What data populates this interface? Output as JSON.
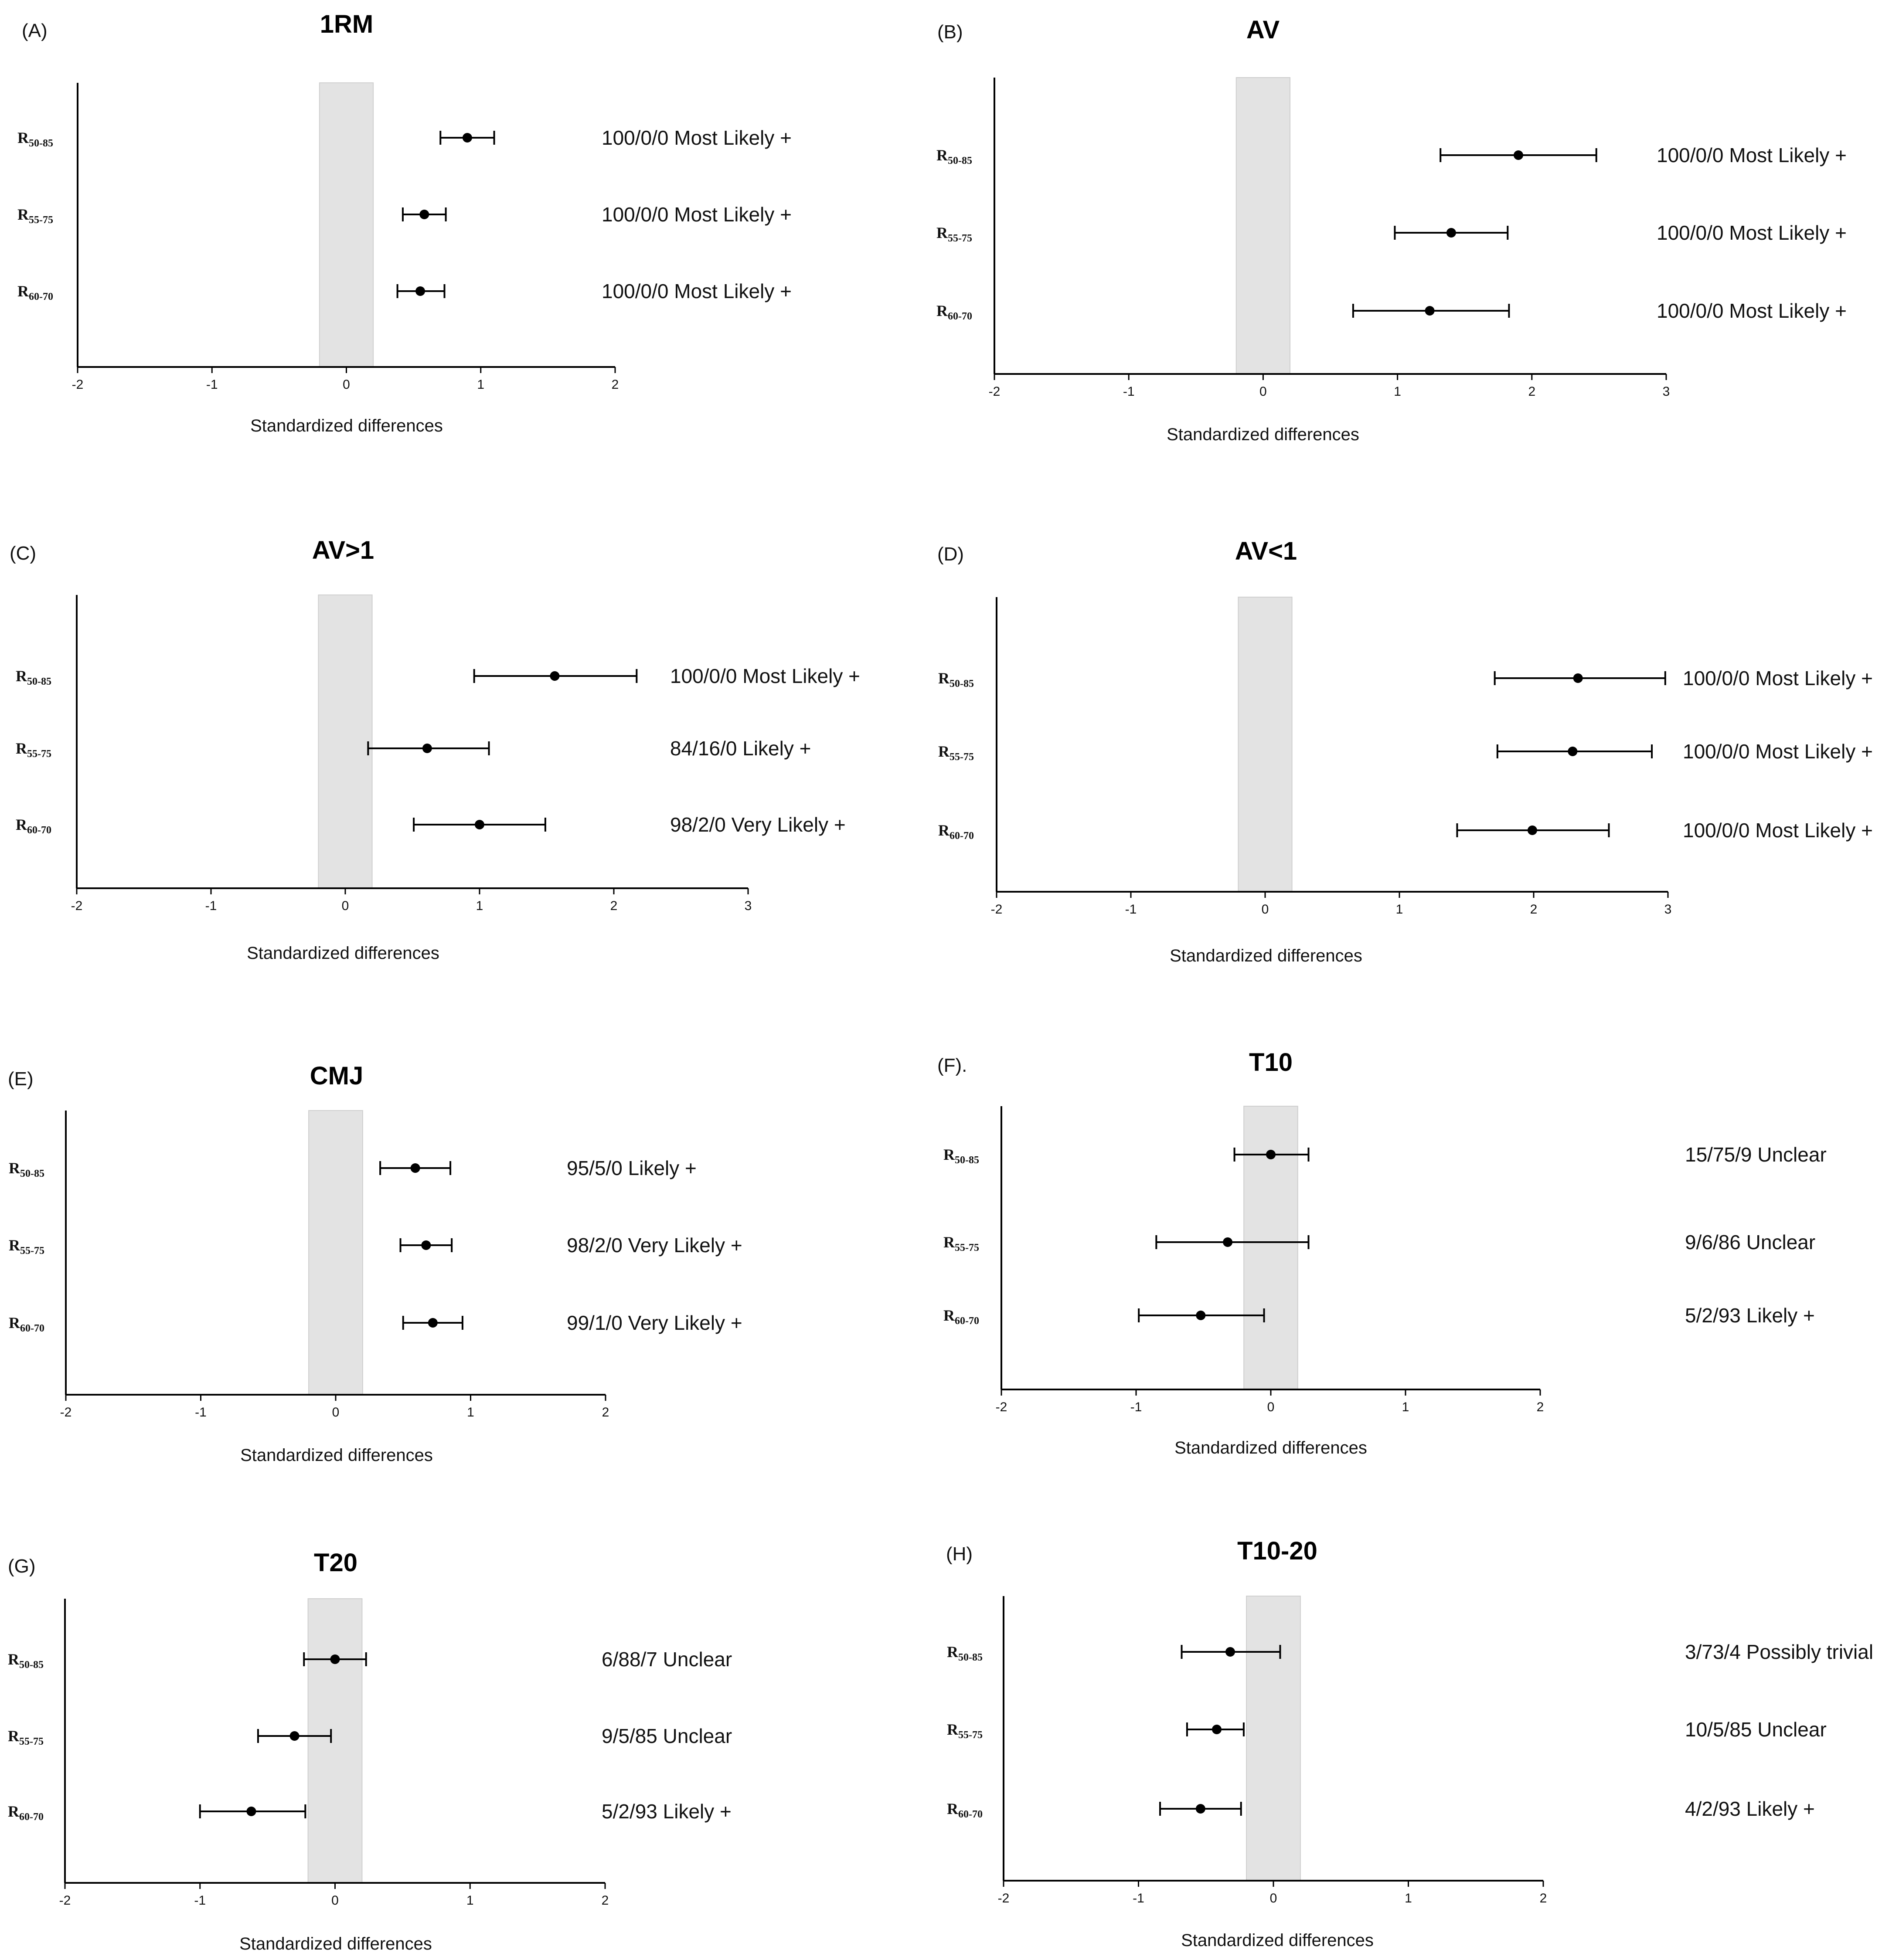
{
  "chart_data": [
    {
      "type": "forest",
      "panel": "(A)",
      "title": "1RM",
      "xlabel": "Standardized differences",
      "xlim": [
        -2,
        2
      ],
      "xticks": [
        "-2",
        "-1",
        "0",
        "1",
        "2"
      ],
      "trivial_band": [
        -0.2,
        0.2
      ],
      "rows": [
        {
          "label_main": "R",
          "label_sub": "50-85",
          "value": 0.9,
          "lower": 0.7,
          "upper": 1.1,
          "annotation": "100/0/0 Most Likely +"
        },
        {
          "label_main": "R",
          "label_sub": "55-75",
          "value": 0.58,
          "lower": 0.42,
          "upper": 0.74,
          "annotation": "100/0/0 Most Likely +"
        },
        {
          "label_main": "R",
          "label_sub": "60-70",
          "value": 0.55,
          "lower": 0.38,
          "upper": 0.73,
          "annotation": "100/0/0 Most Likely +"
        }
      ]
    },
    {
      "type": "forest",
      "panel": "(B)",
      "title": "AV",
      "xlabel": "Standardized differences",
      "xlim": [
        -2,
        3
      ],
      "xticks": [
        "-2",
        "-1",
        "0",
        "1",
        "2",
        "3"
      ],
      "trivial_band": [
        -0.2,
        0.2
      ],
      "rows": [
        {
          "label_main": "R",
          "label_sub": "50-85",
          "value": 1.9,
          "lower": 1.32,
          "upper": 2.48,
          "annotation": "100/0/0 Most Likely +"
        },
        {
          "label_main": "R",
          "label_sub": "55-75",
          "value": 1.4,
          "lower": 0.98,
          "upper": 1.82,
          "annotation": "100/0/0 Most Likely +"
        },
        {
          "label_main": "R",
          "label_sub": "60-70",
          "value": 1.24,
          "lower": 0.67,
          "upper": 1.83,
          "annotation": "100/0/0 Most Likely +"
        }
      ]
    },
    {
      "type": "forest",
      "panel": "(C)",
      "title": "AV>1",
      "xlabel": "Standardized differences",
      "xlim": [
        -2,
        3
      ],
      "xticks": [
        "-2",
        "-1",
        "0",
        "1",
        "2",
        "3"
      ],
      "trivial_band": [
        -0.2,
        0.2
      ],
      "rows": [
        {
          "label_main": "R",
          "label_sub": "50-85",
          "value": 1.56,
          "lower": 0.96,
          "upper": 2.17,
          "annotation": "100/0/0 Most Likely +"
        },
        {
          "label_main": "R",
          "label_sub": "55-75",
          "value": 0.61,
          "lower": 0.17,
          "upper": 1.07,
          "annotation": "84/16/0 Likely +"
        },
        {
          "label_main": "R",
          "label_sub": "60-70",
          "value": 1.0,
          "lower": 0.51,
          "upper": 1.49,
          "annotation": "98/2/0 Very Likely +"
        }
      ]
    },
    {
      "type": "forest",
      "panel": "(D)",
      "title": "AV<1",
      "xlabel": "Standardized differences",
      "xlim": [
        -2,
        3
      ],
      "xticks": [
        "-2",
        "-1",
        "0",
        "1",
        "2",
        "3"
      ],
      "trivial_band": [
        -0.2,
        0.2
      ],
      "rows": [
        {
          "label_main": "R",
          "label_sub": "50-85",
          "value": 2.33,
          "lower": 1.71,
          "upper": 2.98,
          "annotation": "100/0/0 Most Likely +"
        },
        {
          "label_main": "R",
          "label_sub": "55-75",
          "value": 2.29,
          "lower": 1.73,
          "upper": 2.88,
          "annotation": "100/0/0 Most Likely +"
        },
        {
          "label_main": "R",
          "label_sub": "60-70",
          "value": 1.99,
          "lower": 1.43,
          "upper": 2.56,
          "annotation": "100/0/0 Most Likely +"
        }
      ]
    },
    {
      "type": "forest",
      "panel": "(E)",
      "title": "CMJ",
      "xlabel": "Standardized differences",
      "xlim": [
        -2,
        2
      ],
      "xticks": [
        "-2",
        "-1",
        "0",
        "1",
        "2"
      ],
      "trivial_band": [
        -0.2,
        0.2
      ],
      "rows": [
        {
          "label_main": "R",
          "label_sub": "50-85",
          "value": 0.59,
          "lower": 0.33,
          "upper": 0.85,
          "annotation": "95/5/0 Likely +"
        },
        {
          "label_main": "R",
          "label_sub": "55-75",
          "value": 0.67,
          "lower": 0.48,
          "upper": 0.86,
          "annotation": "98/2/0 Very Likely +"
        },
        {
          "label_main": "R",
          "label_sub": "60-70",
          "value": 0.72,
          "lower": 0.5,
          "upper": 0.94,
          "annotation": "99/1/0 Very Likely  +"
        }
      ]
    },
    {
      "type": "forest",
      "panel": "(F).",
      "title": "T10",
      "xlabel": "Standardized differences",
      "xlim": [
        -2,
        2
      ],
      "xticks": [
        "-2",
        "-1",
        "0",
        "1",
        "2"
      ],
      "trivial_band": [
        -0.2,
        0.2
      ],
      "rows": [
        {
          "label_main": "R",
          "label_sub": "50-85",
          "value": 0.0,
          "lower": -0.27,
          "upper": 0.28,
          "annotation": "15/75/9 Unclear"
        },
        {
          "label_main": "R",
          "label_sub": "55-75",
          "value": -0.32,
          "lower": -0.85,
          "upper": 0.28,
          "annotation": "9/6/86 Unclear"
        },
        {
          "label_main": "R",
          "label_sub": "60-70",
          "value": -0.52,
          "lower": -0.98,
          "upper": -0.05,
          "annotation": "5/2/93 Likely +"
        }
      ]
    },
    {
      "type": "forest",
      "panel": "(G)",
      "title": "T20",
      "xlabel": "Standardized differences",
      "xlim": [
        -2,
        2
      ],
      "xticks": [
        "-2",
        "-1",
        "0",
        "1",
        "2"
      ],
      "trivial_band": [
        -0.2,
        0.2
      ],
      "rows": [
        {
          "label_main": "R",
          "label_sub": "50-85",
          "value": 0.0,
          "lower": -0.23,
          "upper": 0.23,
          "annotation": "6/88/7 Unclear"
        },
        {
          "label_main": "R",
          "label_sub": "55-75",
          "value": -0.3,
          "lower": -0.57,
          "upper": -0.03,
          "annotation": "9/5/85 Unclear"
        },
        {
          "label_main": "R",
          "label_sub": "60-70",
          "value": -0.62,
          "lower": -1.0,
          "upper": -0.22,
          "annotation": "5/2/93 Likely +"
        }
      ]
    },
    {
      "type": "forest",
      "panel": "(H)",
      "title": "T10-20",
      "xlabel": "Standardized differences",
      "xlim": [
        -2,
        2
      ],
      "xticks": [
        "-2",
        "-1",
        "0",
        "1",
        "2"
      ],
      "trivial_band": [
        -0.2,
        0.2
      ],
      "rows": [
        {
          "label_main": "R",
          "label_sub": "50-85",
          "value": -0.32,
          "lower": -0.68,
          "upper": 0.05,
          "annotation": "3/73/4 Possibly trivial"
        },
        {
          "label_main": "R",
          "label_sub": "55-75",
          "value": -0.42,
          "lower": -0.64,
          "upper": -0.22,
          "annotation": "10/5/85 Unclear"
        },
        {
          "label_main": "R",
          "label_sub": "60-70",
          "value": -0.54,
          "lower": -0.84,
          "upper": -0.24,
          "annotation": "4/2/93 Likely +"
        }
      ]
    }
  ]
}
